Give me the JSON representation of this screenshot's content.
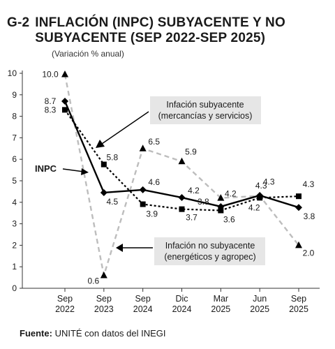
{
  "header": {
    "code": "G-2",
    "title": "INFLACIÓN (INPC) SUBYACENTE Y NO SUBYACENTE (SEP 2022-SEP 2025)",
    "subtitle": "(Variación % anual)"
  },
  "footer": {
    "source_label": "Fuente:",
    "source_text": " UNITÉ con datos del INEGI"
  },
  "colors": {
    "inpc": "#000000",
    "subyacente": "#000000",
    "no_subyacente": "#bdbdbd",
    "callout_bg": "#e6e6e6",
    "axis": "#333333"
  },
  "chart_data": {
    "type": "line",
    "categories": [
      [
        "Sep",
        "2022"
      ],
      [
        "Sep",
        "2023"
      ],
      [
        "Sep",
        "2024"
      ],
      [
        "Dic",
        "2024"
      ],
      [
        "Mar",
        "2025"
      ],
      [
        "Jun",
        "2025"
      ],
      [
        "Sep",
        "2025"
      ]
    ],
    "y_ticks": [
      "0",
      "1",
      "2",
      "3",
      "4",
      "5",
      "6",
      "7",
      "8",
      "9",
      "10"
    ],
    "ylim": [
      0,
      10
    ],
    "grid": false,
    "series": [
      {
        "name": "INPC",
        "style": "solid",
        "marker": "diamond",
        "values": [
          8.7,
          4.45,
          4.58,
          4.22,
          3.8,
          4.32,
          3.76
        ],
        "labels": [
          "8.7",
          "4.5",
          "4.6",
          "4.2",
          "3.8",
          "4.3",
          "3.8"
        ]
      },
      {
        "name": "Infación subyacente (mercancías y servicios)",
        "style": "dotted",
        "marker": "square",
        "values": [
          8.3,
          5.76,
          3.91,
          3.68,
          3.62,
          4.21,
          4.28
        ],
        "labels": [
          "8.3",
          "5.8",
          "3.9",
          "3.7",
          "3.6",
          "4.2",
          "4.3"
        ]
      },
      {
        "name": "Infación no subyacente (energéticos y agropec)",
        "style": "dashed",
        "marker": "triangle",
        "values": [
          9.95,
          0.6,
          6.5,
          5.9,
          4.2,
          4.3,
          2.0
        ],
        "labels": [
          "10.0",
          "0.6",
          "6.5",
          "5.9",
          "4.2",
          "4.3",
          "2.0"
        ]
      }
    ],
    "annotations": {
      "inpc": "INPC",
      "subyacente": [
        "Infación subyacente",
        "(mercancías y servicios)"
      ],
      "no_subyacente": [
        "Infación no subyacente",
        "(energéticos y agropec)"
      ]
    }
  }
}
